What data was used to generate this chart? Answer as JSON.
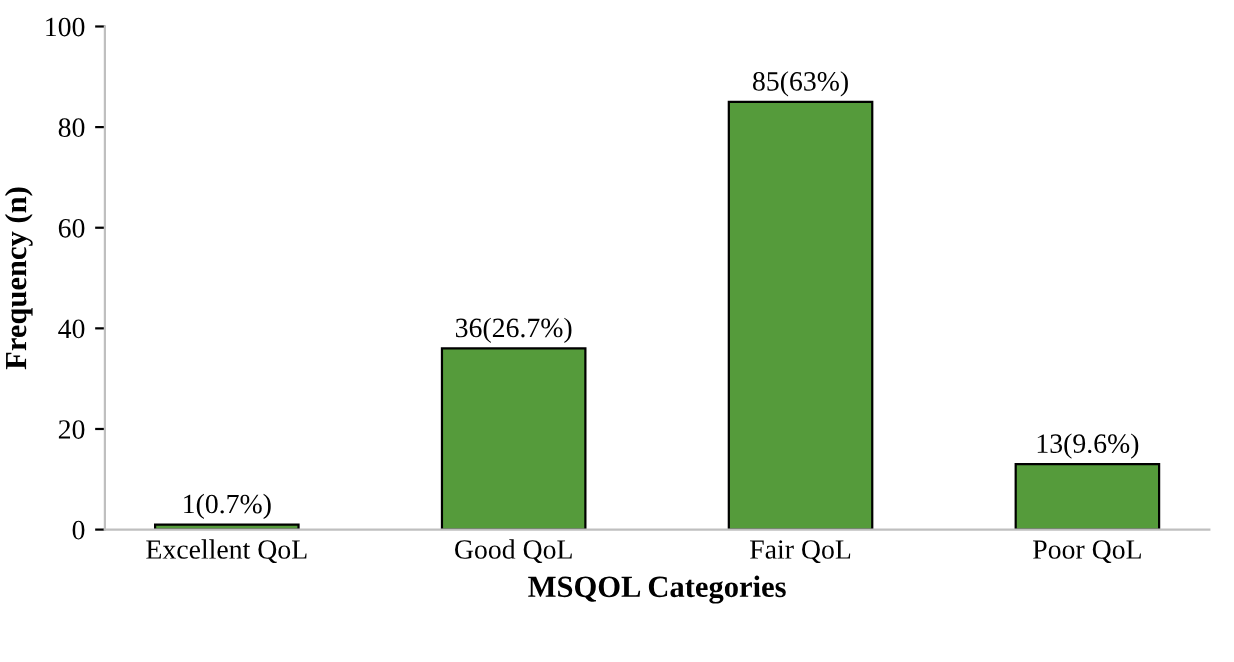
{
  "chart_data": {
    "type": "bar",
    "xlabel": "MSQOL Categories",
    "ylabel": "Frequency (n)",
    "categories": [
      "Excellent QoL",
      "Good QoL",
      "Fair QoL",
      "Poor QoL"
    ],
    "values": [
      1,
      36,
      85,
      13
    ],
    "value_labels": [
      "1(0.7%)",
      "36(26.7%)",
      "85(63%)",
      "13(9.6%)"
    ],
    "color": "#559b3b",
    "ylim": [
      0,
      100
    ],
    "yticks": [
      0,
      20,
      40,
      60,
      80,
      100
    ],
    "grid": false,
    "legend": false
  }
}
